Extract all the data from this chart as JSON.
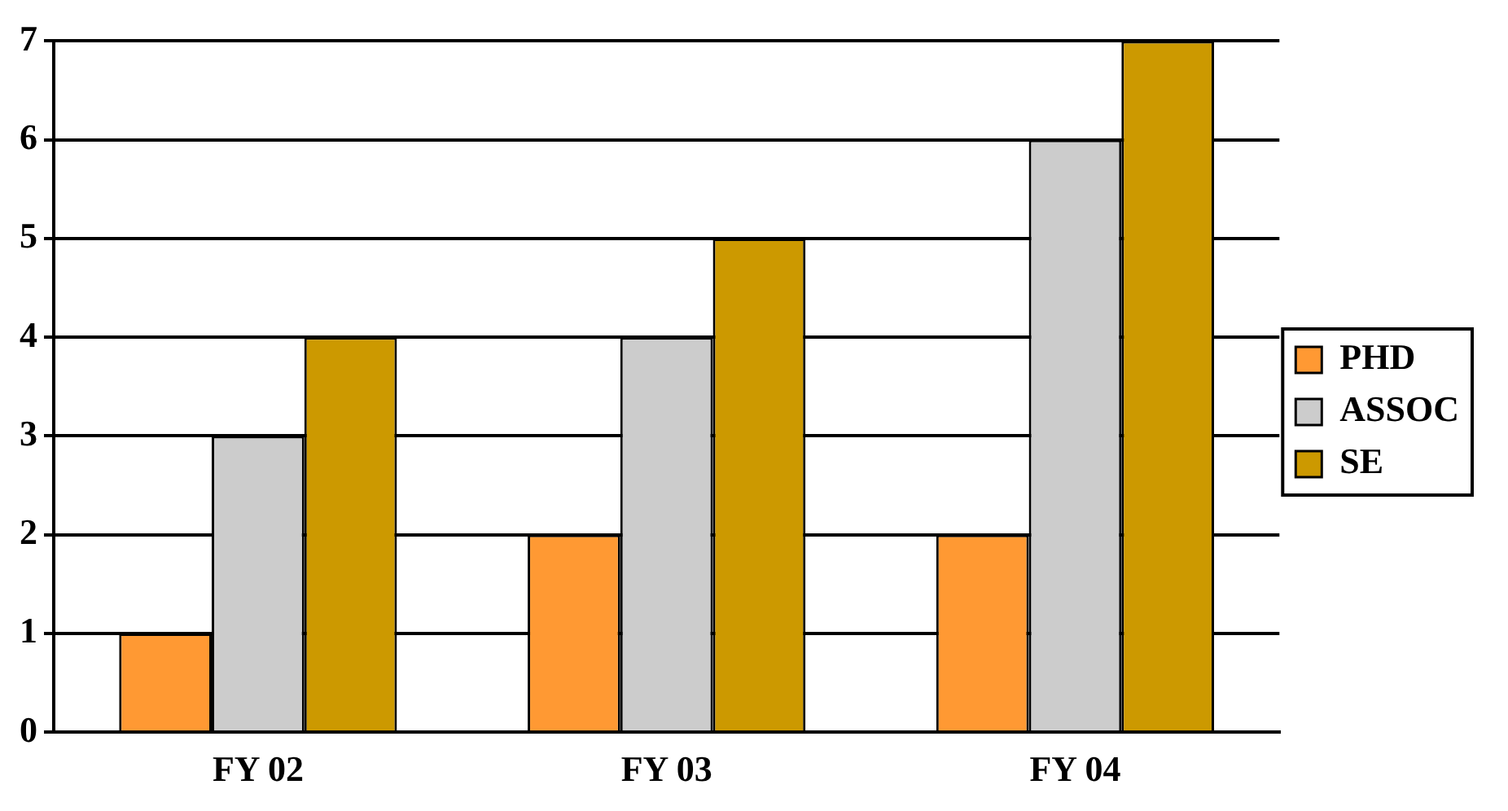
{
  "chart_data": {
    "type": "bar",
    "categories": [
      "FY 02",
      "FY 03",
      "FY 04"
    ],
    "series": [
      {
        "name": "PHD",
        "color": "#ff9933",
        "values": [
          1,
          2,
          2
        ]
      },
      {
        "name": "ASSOC",
        "color": "#cccccc",
        "values": [
          3,
          4,
          6
        ]
      },
      {
        "name": "SE",
        "color": "#cc9900",
        "values": [
          4,
          5,
          7
        ]
      }
    ],
    "ylim": [
      0,
      7
    ],
    "yticks": [
      0,
      1,
      2,
      3,
      4,
      5,
      6,
      7
    ],
    "grid": "y",
    "legend": "right"
  }
}
